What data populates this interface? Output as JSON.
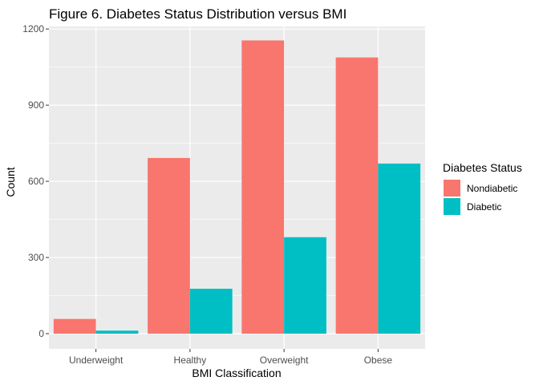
{
  "chart_data": {
    "type": "bar",
    "title": "Figure 6. Diabetes Status Distribution versus BMI",
    "xlabel": "BMI Classification",
    "ylabel": "Count",
    "categories": [
      "Underweight",
      "Healthy",
      "Overweight",
      "Obese"
    ],
    "series": [
      {
        "name": "Nondiabetic",
        "color": "#f8766d",
        "values": [
          58,
          692,
          1155,
          1088
        ]
      },
      {
        "name": "Diabetic",
        "color": "#00bfc4",
        "values": [
          12,
          177,
          380,
          670
        ]
      }
    ],
    "ylim": [
      -60,
      1210
    ],
    "yticks": [
      0,
      300,
      600,
      900,
      1200
    ],
    "grid": true,
    "legend_title": "Diabetes Status",
    "legend_position": "right"
  }
}
